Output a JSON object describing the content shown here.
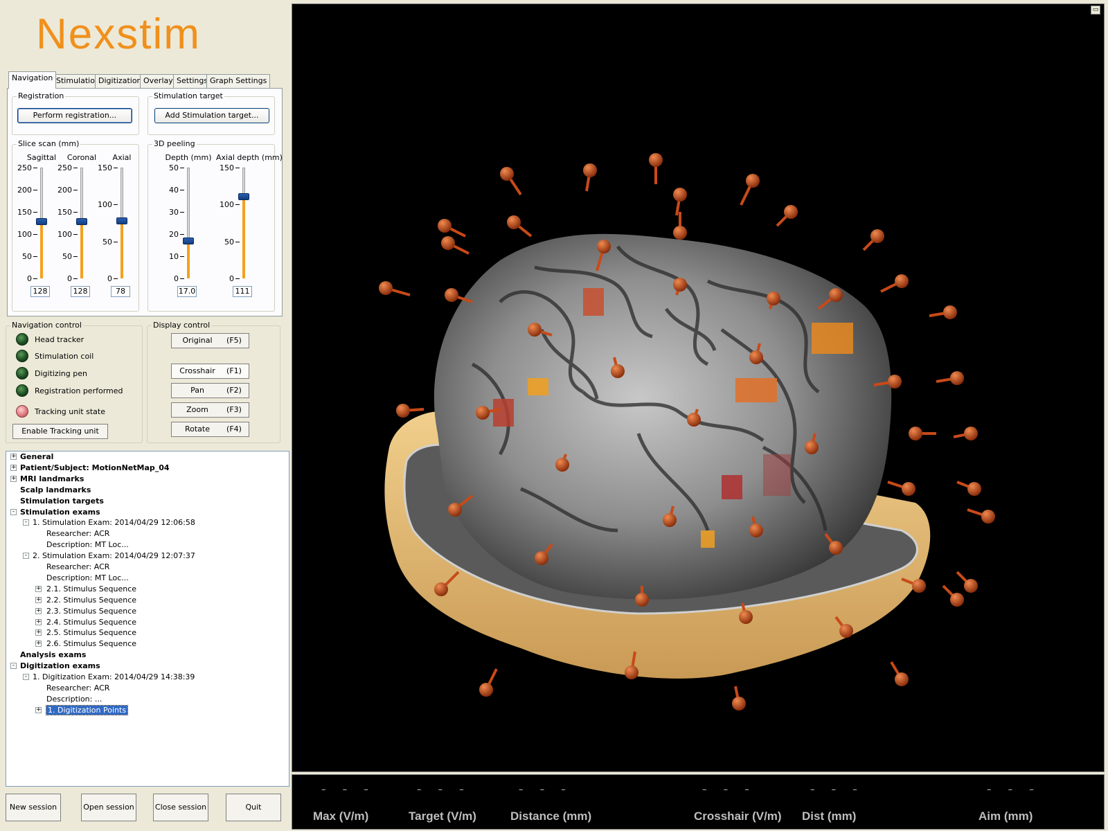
{
  "app": {
    "logo": "Nexstim"
  },
  "tabs": [
    "Navigation",
    "Stimulation",
    "Digitization",
    "Overlay",
    "Settings",
    "Graph Settings"
  ],
  "registration": {
    "group_label": "Registration",
    "button": "Perform registration..."
  },
  "stim_target": {
    "group_label": "Stimulation target",
    "button": "Add Stimulation target..."
  },
  "slice_scan": {
    "group_label": "Slice scan (mm)",
    "sliders": [
      {
        "label": "Sagittal",
        "ticks": [
          "250",
          "200",
          "150",
          "100",
          "50",
          "0"
        ],
        "max": 250,
        "value": "128"
      },
      {
        "label": "Coronal",
        "ticks": [
          "250",
          "200",
          "150",
          "100",
          "50",
          "0"
        ],
        "max": 250,
        "value": "128"
      },
      {
        "label": "Axial",
        "ticks": [
          "150",
          "100",
          "50",
          "0"
        ],
        "max": 150,
        "value": "78"
      }
    ]
  },
  "peeling": {
    "group_label": "3D peeling",
    "sliders": [
      {
        "label": "Depth (mm)",
        "ticks": [
          "50",
          "40",
          "30",
          "20",
          "10",
          "0"
        ],
        "max": 50,
        "value": "17.0"
      },
      {
        "label": "Axial depth (mm)",
        "ticks": [
          "150",
          "100",
          "50",
          "0"
        ],
        "max": 150,
        "value": "111"
      }
    ]
  },
  "nav_control": {
    "group_label": "Navigation control",
    "items": [
      {
        "label": "Head tracker",
        "state": "off"
      },
      {
        "label": "Stimulation coil",
        "state": "off"
      },
      {
        "label": "Digitizing pen",
        "state": "off"
      },
      {
        "label": "Registration performed",
        "state": "off"
      },
      {
        "label": "Tracking unit state",
        "state": "warn"
      }
    ],
    "button": "Enable Tracking unit"
  },
  "display_control": {
    "group_label": "Display control",
    "buttons": [
      {
        "label": "Original",
        "key": "(F5)"
      },
      {
        "label": "Crosshair",
        "key": "(F1)"
      },
      {
        "label": "Pan",
        "key": "(F2)"
      },
      {
        "label": "Zoom",
        "key": "(F3)"
      },
      {
        "label": "Rotate",
        "key": "(F4)"
      }
    ],
    "active": "Crosshair"
  },
  "tree": [
    {
      "text": "General",
      "bold": true,
      "level": 0,
      "expander": "+"
    },
    {
      "text": "Patient/Subject: MotionNetMap_04",
      "bold": true,
      "level": 0,
      "expander": "+"
    },
    {
      "text": "MRI landmarks",
      "bold": true,
      "level": 0,
      "expander": "+"
    },
    {
      "text": "Scalp landmarks",
      "bold": true,
      "level": 0,
      "expander": ""
    },
    {
      "text": "Stimulation targets",
      "bold": true,
      "level": 0,
      "expander": ""
    },
    {
      "text": "Stimulation exams",
      "bold": true,
      "level": 0,
      "expander": "-"
    },
    {
      "text": "1. Stimulation Exam: 2014/04/29 12:06:58",
      "bold": false,
      "level": 1,
      "expander": "-"
    },
    {
      "text": "Researcher: ACR",
      "bold": false,
      "level": 2,
      "expander": ""
    },
    {
      "text": "Description: MT Loc...",
      "bold": false,
      "level": 2,
      "expander": ""
    },
    {
      "text": "2. Stimulation Exam: 2014/04/29 12:07:37",
      "bold": false,
      "level": 1,
      "expander": "-"
    },
    {
      "text": "Researcher: ACR",
      "bold": false,
      "level": 2,
      "expander": ""
    },
    {
      "text": "Description: MT Loc...",
      "bold": false,
      "level": 2,
      "expander": ""
    },
    {
      "text": "2.1. Stimulus Sequence",
      "bold": false,
      "level": 2,
      "expander": "+"
    },
    {
      "text": "2.2. Stimulus Sequence",
      "bold": false,
      "level": 2,
      "expander": "+"
    },
    {
      "text": "2.3. Stimulus Sequence",
      "bold": false,
      "level": 2,
      "expander": "+"
    },
    {
      "text": "2.4. Stimulus Sequence",
      "bold": false,
      "level": 2,
      "expander": "+"
    },
    {
      "text": "2.5. Stimulus Sequence",
      "bold": false,
      "level": 2,
      "expander": "+"
    },
    {
      "text": "2.6. Stimulus Sequence",
      "bold": false,
      "level": 2,
      "expander": "+"
    },
    {
      "text": "Analysis exams",
      "bold": true,
      "level": 0,
      "expander": ""
    },
    {
      "text": "Digitization exams",
      "bold": true,
      "level": 0,
      "expander": "-"
    },
    {
      "text": "1. Digitization Exam: 2014/04/29 14:38:39",
      "bold": false,
      "level": 1,
      "expander": "-"
    },
    {
      "text": "Researcher: ACR",
      "bold": false,
      "level": 2,
      "expander": ""
    },
    {
      "text": "Description: ...",
      "bold": false,
      "level": 2,
      "expander": ""
    },
    {
      "text": "1. Digitization Points",
      "bold": false,
      "level": 2,
      "expander": "+",
      "selected": true
    }
  ],
  "session_buttons": [
    "New session",
    "Open session",
    "Close session",
    "Quit"
  ],
  "status_bar": [
    {
      "dash": "– – –",
      "label": "Max (V/m)"
    },
    {
      "dash": "– – –",
      "label": "Target (V/m)"
    },
    {
      "dash": "– – –",
      "label": "Distance (mm)"
    },
    {
      "dash": "– – –",
      "label": "Crosshair (V/m)"
    },
    {
      "dash": "– – –",
      "label": "Dist (mm)"
    },
    {
      "dash": "– – –",
      "label": "Aim (mm)"
    }
  ],
  "colors": {
    "logo": "#f0901c",
    "slider_fill": "#f5a020",
    "pin": "#c84a18",
    "head_base": "#e7bd78",
    "viewer_bg": "#000000"
  }
}
